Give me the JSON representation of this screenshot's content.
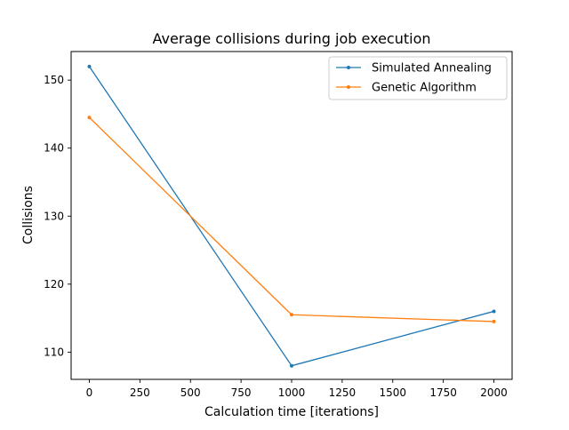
{
  "chart_data": {
    "type": "line",
    "title": "Average collisions during job execution",
    "xlabel": "Calculation time [iterations]",
    "ylabel": "Collisions",
    "xlim": [
      -90,
      2090
    ],
    "ylim": [
      106,
      154.2
    ],
    "x_ticks": [
      0,
      250,
      500,
      750,
      1000,
      1250,
      1500,
      1750,
      2000
    ],
    "y_ticks": [
      110,
      120,
      130,
      140,
      150
    ],
    "grid": false,
    "legend_position": "upper-right",
    "series": [
      {
        "name": "Simulated Annealing",
        "color": "#1f77b4",
        "x": [
          0,
          1000,
          2000
        ],
        "y": [
          152,
          108,
          116
        ]
      },
      {
        "name": "Genetic Algorithm",
        "color": "#ff7f0e",
        "x": [
          0,
          1000,
          2000
        ],
        "y": [
          144.5,
          115.5,
          114.5
        ]
      }
    ]
  }
}
